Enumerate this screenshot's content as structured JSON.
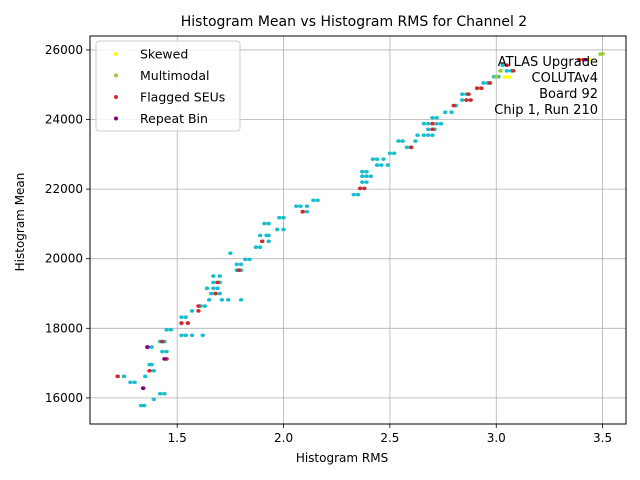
{
  "chart_data": {
    "type": "scatter",
    "title": "Histogram Mean vs Histogram RMS for Channel 2",
    "xlabel": "Histogram RMS",
    "ylabel": "Histogram Mean",
    "xlim": [
      1.09,
      3.61
    ],
    "ylim": [
      15250,
      26400
    ],
    "xticks": [
      1.5,
      2.0,
      2.5,
      3.0,
      3.5
    ],
    "xtick_labels": [
      "1.5",
      "2.0",
      "2.5",
      "3.0",
      "3.5"
    ],
    "yticks": [
      16000,
      18000,
      20000,
      22000,
      24000,
      26000
    ],
    "ytick_labels": [
      "16000",
      "18000",
      "20000",
      "22000",
      "24000",
      "26000"
    ],
    "grid": true,
    "legend_placement": "upper-left",
    "annotation_lines": [
      "ATLAS Upgrade",
      "COLUTAv4",
      "Board 92",
      "Chip 1, Run 210"
    ],
    "series": [
      {
        "name": "",
        "color": "#17becf",
        "points": [
          [
            1.33,
            15780
          ],
          [
            1.345,
            15780
          ],
          [
            1.39,
            15960
          ],
          [
            1.42,
            16120
          ],
          [
            1.44,
            16120
          ],
          [
            1.22,
            16620
          ],
          [
            1.25,
            16620
          ],
          [
            1.28,
            16450
          ],
          [
            1.3,
            16450
          ],
          [
            1.35,
            16620
          ],
          [
            1.34,
            16280
          ],
          [
            1.37,
            16780
          ],
          [
            1.39,
            16780
          ],
          [
            1.37,
            16960
          ],
          [
            1.38,
            16960
          ],
          [
            1.43,
            17330
          ],
          [
            1.45,
            17330
          ],
          [
            1.45,
            17120
          ],
          [
            1.36,
            17460
          ],
          [
            1.38,
            17460
          ],
          [
            1.42,
            17620
          ],
          [
            1.44,
            17620
          ],
          [
            1.45,
            17960
          ],
          [
            1.47,
            17960
          ],
          [
            1.52,
            17800
          ],
          [
            1.54,
            17800
          ],
          [
            1.57,
            17800
          ],
          [
            1.62,
            17800
          ],
          [
            1.52,
            18150
          ],
          [
            1.55,
            18150
          ],
          [
            1.52,
            18320
          ],
          [
            1.54,
            18320
          ],
          [
            1.57,
            18500
          ],
          [
            1.61,
            18640
          ],
          [
            1.63,
            18640
          ],
          [
            1.65,
            18820
          ],
          [
            1.71,
            18820
          ],
          [
            1.74,
            18820
          ],
          [
            1.8,
            18820
          ],
          [
            1.64,
            19150
          ],
          [
            1.67,
            19150
          ],
          [
            1.69,
            19150
          ],
          [
            1.66,
            19000
          ],
          [
            1.68,
            19000
          ],
          [
            1.7,
            19000
          ],
          [
            1.67,
            19320
          ],
          [
            1.7,
            19320
          ],
          [
            1.67,
            19500
          ],
          [
            1.7,
            19500
          ],
          [
            1.78,
            19670
          ],
          [
            1.8,
            19670
          ],
          [
            1.78,
            19840
          ],
          [
            1.8,
            19840
          ],
          [
            1.82,
            19980
          ],
          [
            1.84,
            19980
          ],
          [
            1.75,
            20160
          ],
          [
            1.87,
            20330
          ],
          [
            1.89,
            20330
          ],
          [
            1.9,
            20500
          ],
          [
            1.93,
            20500
          ],
          [
            1.89,
            20670
          ],
          [
            1.92,
            20670
          ],
          [
            1.93,
            20670
          ],
          [
            1.97,
            20840
          ],
          [
            2.0,
            20840
          ],
          [
            1.91,
            21010
          ],
          [
            1.93,
            21010
          ],
          [
            1.98,
            21180
          ],
          [
            2.0,
            21180
          ],
          [
            2.06,
            21510
          ],
          [
            2.08,
            21510
          ],
          [
            2.11,
            21510
          ],
          [
            2.14,
            21680
          ],
          [
            2.16,
            21680
          ],
          [
            2.09,
            21350
          ],
          [
            2.11,
            21350
          ],
          [
            2.33,
            21840
          ],
          [
            2.35,
            21840
          ],
          [
            2.36,
            22020
          ],
          [
            2.38,
            22020
          ],
          [
            2.37,
            22200
          ],
          [
            2.39,
            22200
          ],
          [
            2.37,
            22370
          ],
          [
            2.39,
            22370
          ],
          [
            2.41,
            22370
          ],
          [
            2.37,
            22500
          ],
          [
            2.39,
            22500
          ],
          [
            2.42,
            22860
          ],
          [
            2.44,
            22860
          ],
          [
            2.47,
            22860
          ],
          [
            2.44,
            22690
          ],
          [
            2.46,
            22690
          ],
          [
            2.49,
            22690
          ],
          [
            2.5,
            23030
          ],
          [
            2.52,
            23030
          ],
          [
            2.54,
            23380
          ],
          [
            2.56,
            23380
          ],
          [
            2.58,
            23200
          ],
          [
            2.6,
            23200
          ],
          [
            2.62,
            23380
          ],
          [
            2.63,
            23550
          ],
          [
            2.66,
            23550
          ],
          [
            2.68,
            23550
          ],
          [
            2.7,
            23550
          ],
          [
            2.68,
            23720
          ],
          [
            2.71,
            23720
          ],
          [
            2.66,
            23880
          ],
          [
            2.68,
            23880
          ],
          [
            2.72,
            23880
          ],
          [
            2.74,
            23880
          ],
          [
            2.7,
            24050
          ],
          [
            2.72,
            24050
          ],
          [
            2.76,
            24210
          ],
          [
            2.79,
            24210
          ],
          [
            2.81,
            24400
          ],
          [
            2.84,
            24560
          ],
          [
            2.86,
            24560
          ],
          [
            2.84,
            24730
          ],
          [
            2.86,
            24730
          ],
          [
            2.91,
            24900
          ],
          [
            2.94,
            25050
          ],
          [
            2.96,
            25050
          ],
          [
            2.99,
            25230
          ],
          [
            3.01,
            25230
          ],
          [
            3.02,
            25400
          ],
          [
            3.05,
            25400
          ],
          [
            3.07,
            25400
          ],
          [
            3.03,
            25560
          ]
        ]
      },
      {
        "name": "Skewed",
        "color": "#ffff00",
        "points": [
          [
            3.04,
            25220
          ],
          [
            3.06,
            25220
          ],
          [
            3.44,
            25720
          ]
        ]
      },
      {
        "name": "Multimodal",
        "color": "#9acd32",
        "points": [
          [
            3.0,
            25230
          ],
          [
            3.02,
            25400
          ],
          [
            3.49,
            25880
          ],
          [
            3.5,
            25890
          ]
        ]
      },
      {
        "name": "Flagged SEUs",
        "color": "#d62728",
        "points": [
          [
            1.22,
            16620
          ],
          [
            1.34,
            16280
          ],
          [
            1.37,
            16780
          ],
          [
            1.45,
            17120
          ],
          [
            1.36,
            17460
          ],
          [
            1.43,
            17620
          ],
          [
            1.52,
            18150
          ],
          [
            1.55,
            18150
          ],
          [
            1.6,
            18500
          ],
          [
            1.6,
            18640
          ],
          [
            1.68,
            19000
          ],
          [
            1.69,
            19320
          ],
          [
            1.79,
            19670
          ],
          [
            1.9,
            20500
          ],
          [
            2.09,
            21350
          ],
          [
            2.36,
            22020
          ],
          [
            2.38,
            22020
          ],
          [
            2.6,
            23200
          ],
          [
            2.7,
            23720
          ],
          [
            2.7,
            23880
          ],
          [
            2.8,
            24400
          ],
          [
            2.86,
            24560
          ],
          [
            2.88,
            24560
          ],
          [
            2.87,
            24730
          ],
          [
            2.93,
            24900
          ],
          [
            2.91,
            24900
          ],
          [
            2.97,
            25050
          ],
          [
            3.05,
            25560
          ],
          [
            3.08,
            25400
          ],
          [
            3.39,
            25720
          ],
          [
            3.41,
            25720
          ]
        ]
      },
      {
        "name": "Repeat Bin",
        "color": "#800080",
        "points": [
          [
            1.34,
            16280
          ],
          [
            1.36,
            17460
          ],
          [
            1.44,
            17120
          ],
          [
            3.42,
            25720
          ]
        ]
      }
    ],
    "legend": [
      {
        "label": "Skewed",
        "color": "#ffff00"
      },
      {
        "label": "Multimodal",
        "color": "#9acd32"
      },
      {
        "label": "Flagged SEUs",
        "color": "#d62728"
      },
      {
        "label": "Repeat Bin",
        "color": "#800080"
      }
    ]
  }
}
